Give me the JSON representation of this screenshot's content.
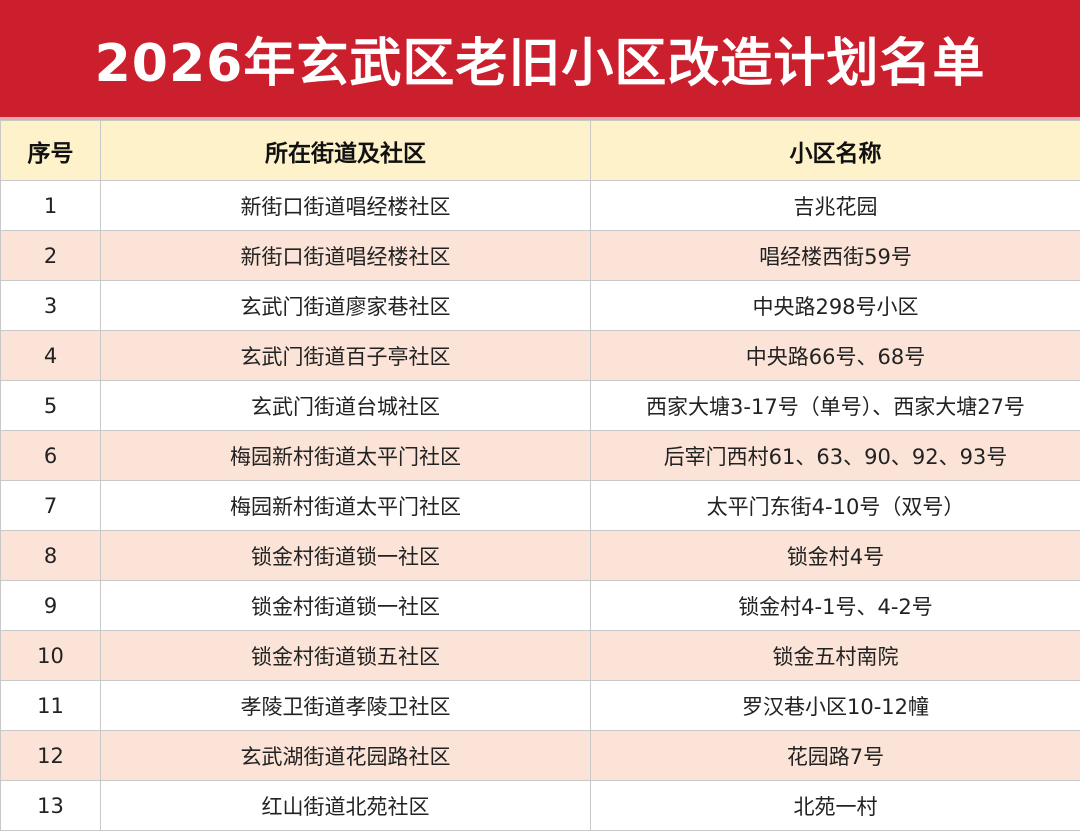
{
  "title": "2026年玄武区老旧小区改造计划名单",
  "headers": {
    "index": "序号",
    "community": "所在街道及社区",
    "name": "小区名称"
  },
  "rows": [
    {
      "index": "1",
      "community": "新街口街道唱经楼社区",
      "name": "吉兆花园"
    },
    {
      "index": "2",
      "community": "新街口街道唱经楼社区",
      "name": "唱经楼西街59号"
    },
    {
      "index": "3",
      "community": "玄武门街道廖家巷社区",
      "name": "中央路298号小区"
    },
    {
      "index": "4",
      "community": "玄武门街道百子亭社区",
      "name": "中央路66号、68号"
    },
    {
      "index": "5",
      "community": "玄武门街道台城社区",
      "name": "西家大塘3-17号（单号）、西家大塘27号"
    },
    {
      "index": "6",
      "community": "梅园新村街道太平门社区",
      "name": "后宰门西村61、63、90、92、93号"
    },
    {
      "index": "7",
      "community": "梅园新村街道太平门社区",
      "name": "太平门东街4-10号（双号）"
    },
    {
      "index": "8",
      "community": "锁金村街道锁一社区",
      "name": "锁金村4号"
    },
    {
      "index": "9",
      "community": "锁金村街道锁一社区",
      "name": "锁金村4-1号、4-2号"
    },
    {
      "index": "10",
      "community": "锁金村街道锁五社区",
      "name": "锁金五村南院"
    },
    {
      "index": "11",
      "community": "孝陵卫街道孝陵卫社区",
      "name": "罗汉巷小区10-12幢"
    },
    {
      "index": "12",
      "community": "玄武湖街道花园路社区",
      "name": "花园路7号"
    },
    {
      "index": "13",
      "community": "红山街道北苑社区",
      "name": "北苑一村"
    }
  ],
  "colors": {
    "title_bg": "#cc1f2d",
    "header_bg": "#fdf2c9",
    "stripe_bg": "#fbe4d7"
  }
}
